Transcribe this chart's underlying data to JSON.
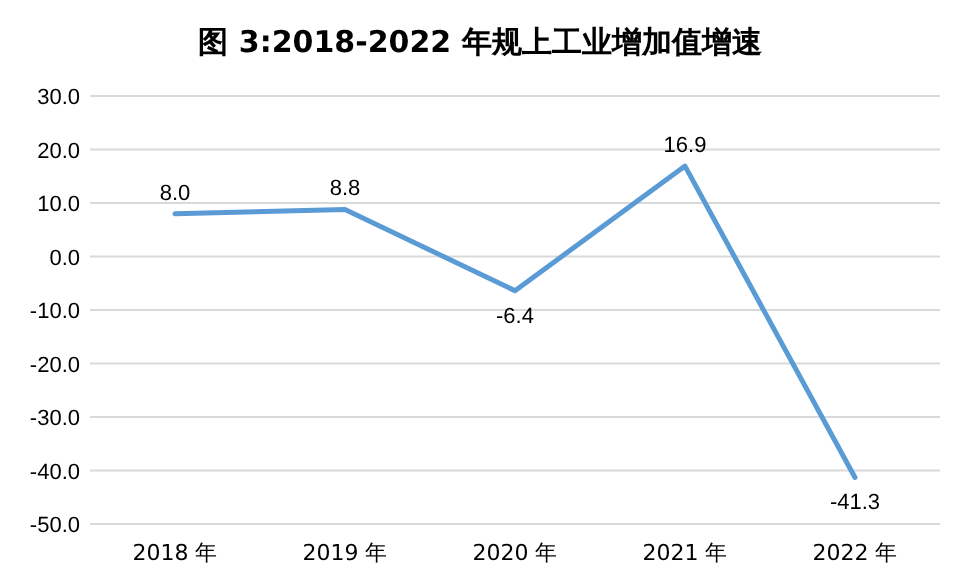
{
  "chart_data": {
    "type": "line",
    "title": "图 3:2018-2022 年规上工业增加值增速",
    "categories": [
      "2018 年",
      "2019 年",
      "2020 年",
      "2021 年",
      "2022 年"
    ],
    "series": [
      {
        "color": "#5b9bd5",
        "values": [
          8.0,
          8.8,
          -6.4,
          16.9,
          -41.3
        ],
        "value_labels": [
          "8.0",
          "8.8",
          "-6.4",
          "16.9",
          "-41.3"
        ]
      }
    ],
    "ylim": [
      -50,
      30
    ],
    "yticks": [
      {
        "value": 30,
        "label": "30.0"
      },
      {
        "value": 20,
        "label": "20.0"
      },
      {
        "value": 10,
        "label": "10.0"
      },
      {
        "value": 0,
        "label": "0.0"
      },
      {
        "value": -10,
        "label": "-10.0"
      },
      {
        "value": -20,
        "label": "-20.0"
      },
      {
        "value": -30,
        "label": "-30.0"
      },
      {
        "value": -40,
        "label": "-40.0"
      },
      {
        "value": -50,
        "label": "-50.0"
      }
    ],
    "grid": "y",
    "marker": "none",
    "line_style": "solid"
  }
}
